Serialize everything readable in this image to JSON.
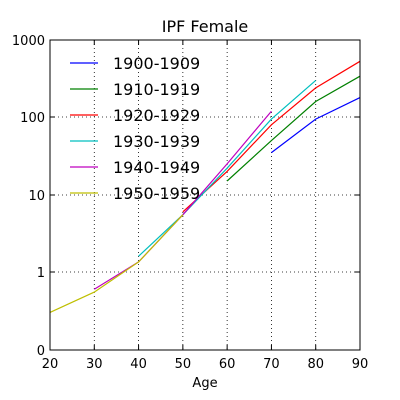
{
  "chart_data": {
    "type": "line",
    "title": "IPF Female",
    "xlabel": "Age",
    "ylabel": "",
    "xlim": [
      20,
      90
    ],
    "ylim": [
      0,
      1000
    ],
    "yscale": "log",
    "grid": true,
    "legend_position": "top-left",
    "x_ticks": [
      "20",
      "30",
      "40",
      "50",
      "60",
      "70",
      "80",
      "90"
    ],
    "y_ticks": [
      {
        "value": 0,
        "label": "0"
      },
      {
        "value": 1,
        "label": "1"
      },
      {
        "value": 10,
        "label": "10"
      },
      {
        "value": 100,
        "label": "100"
      },
      {
        "value": 1000,
        "label": "1000"
      }
    ],
    "series": [
      {
        "name": "1900-1909",
        "color": "#0000ff",
        "x": [
          70,
          80,
          90
        ],
        "y": [
          35,
          95,
          180
        ]
      },
      {
        "name": "1910-1919",
        "color": "#008000",
        "x": [
          60,
          70,
          80,
          90
        ],
        "y": [
          15,
          50,
          160,
          340
        ]
      },
      {
        "name": "1920-1929",
        "color": "#ff0000",
        "x": [
          50,
          60,
          70,
          80,
          90
        ],
        "y": [
          6,
          20,
          80,
          240,
          530
        ]
      },
      {
        "name": "1930-1939",
        "color": "#00bfbf",
        "x": [
          40,
          50,
          60,
          70,
          80
        ],
        "y": [
          1.6,
          5.5,
          22,
          95,
          300
        ]
      },
      {
        "name": "1940-1949",
        "color": "#bf00bf",
        "x": [
          30,
          40,
          50,
          60,
          70
        ],
        "y": [
          0.6,
          1.35,
          5.5,
          25,
          120
        ]
      },
      {
        "name": "1950-1959",
        "color": "#bfbf00",
        "x": [
          20,
          30,
          40,
          50
        ],
        "y": [
          0.3,
          0.55,
          1.35,
          5.5
        ]
      }
    ]
  }
}
